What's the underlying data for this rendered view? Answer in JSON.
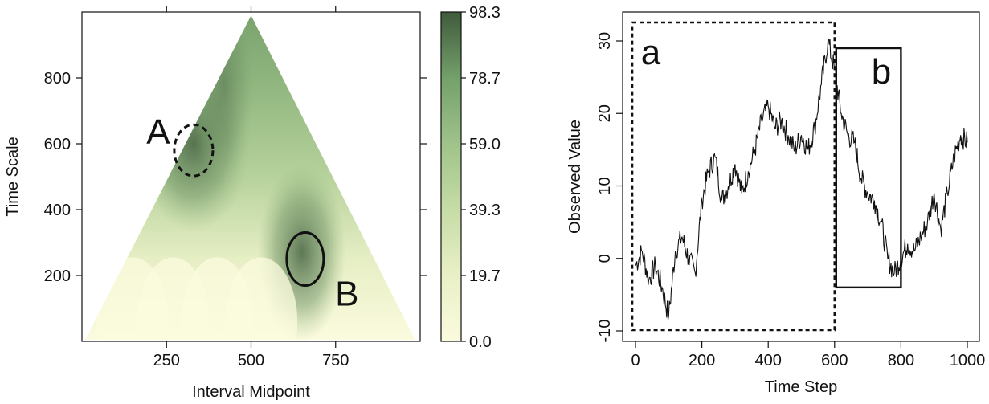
{
  "chart_data": [
    {
      "type": "heatmap",
      "xlabel": "Interval Midpoint",
      "ylabel": "Time Scale",
      "xlim": [
        0,
        1000
      ],
      "ylim": [
        0,
        1000
      ],
      "x_ticks": [
        250,
        500,
        750
      ],
      "y_ticks": [
        200,
        400,
        600,
        800
      ],
      "colorbar": {
        "ticks": [
          "98.3",
          "78.7",
          "59.0",
          "39.3",
          "19.7",
          "0.0"
        ],
        "range": [
          0.0,
          98.3
        ],
        "low_color": "#fbfbde",
        "high_color": "#3f5a3c"
      },
      "annotations": [
        {
          "label": "A",
          "x": 330,
          "y": 580,
          "style": "dashed-circle"
        },
        {
          "label": "B",
          "x": 660,
          "y": 250,
          "style": "solid-circle"
        }
      ]
    },
    {
      "type": "line",
      "xlabel": "Time Step",
      "ylabel": "Observed Value",
      "xlim": [
        0,
        1000
      ],
      "ylim": [
        -10,
        33
      ],
      "x_ticks": [
        0,
        200,
        400,
        600,
        800,
        1000
      ],
      "y_ticks": [
        -10,
        0,
        10,
        20,
        30
      ],
      "x": [
        0,
        20,
        40,
        60,
        80,
        100,
        120,
        140,
        160,
        180,
        200,
        220,
        240,
        260,
        280,
        300,
        320,
        340,
        360,
        380,
        400,
        420,
        440,
        460,
        480,
        500,
        520,
        540,
        560,
        580,
        600,
        620,
        640,
        660,
        680,
        700,
        720,
        740,
        760,
        780,
        800,
        820,
        840,
        860,
        880,
        900,
        920,
        940,
        960,
        980,
        1000
      ],
      "series": [
        {
          "values": [
            -1,
            1,
            -3,
            -1,
            -4,
            -8,
            1,
            3,
            0,
            -2,
            8,
            12,
            14,
            8,
            10,
            13,
            9,
            12,
            15,
            19,
            21,
            18,
            19,
            17,
            15,
            17,
            15,
            18,
            24,
            30,
            26,
            20,
            17,
            16,
            11,
            9,
            8,
            5,
            0,
            -2,
            0,
            2,
            1,
            3,
            5,
            9,
            4,
            9,
            14,
            17,
            16
          ]
        }
      ],
      "annotations": [
        {
          "label": "a",
          "x_range": [
            0,
            600
          ],
          "y_range": [
            -10,
            33
          ],
          "style": "dashed-box"
        },
        {
          "label": "b",
          "x_range": [
            600,
            800
          ],
          "y_range": [
            -4,
            29
          ],
          "style": "solid-box"
        }
      ]
    }
  ]
}
